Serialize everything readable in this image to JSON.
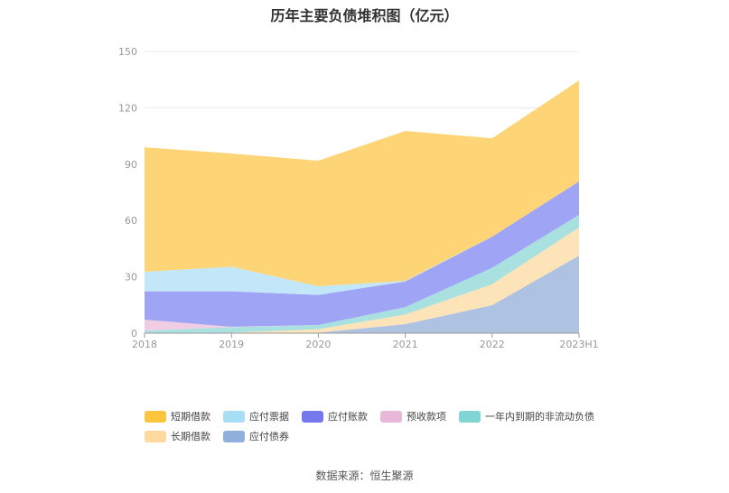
{
  "chart_data": {
    "type": "area",
    "stacked": true,
    "title": "历年主要负债堆积图（亿元）",
    "xlabel": "",
    "ylabel": "",
    "categories": [
      "2018",
      "2019",
      "2020",
      "2021",
      "2022",
      "2023H1"
    ],
    "ylim": [
      0,
      150
    ],
    "yticks": [
      "0",
      "30",
      "60",
      "90",
      "120",
      "150"
    ],
    "grid": true,
    "legend_position": "bottom",
    "series": [
      {
        "name": "应付债券",
        "color": "#8fafdd",
        "fill": "#aec2e2",
        "values": [
          0,
          0,
          0.3,
          4.8,
          14.9,
          41.3
        ]
      },
      {
        "name": "长期借款",
        "color": "#fdd9a0",
        "fill": "#fde3b8",
        "values": [
          0,
          0.3,
          1.8,
          5.1,
          11.2,
          15.0
        ]
      },
      {
        "name": "一年内到期的非流动负债",
        "color": "#7fd4d4",
        "fill": "#a9e1e1",
        "values": [
          1.4,
          2.9,
          2.2,
          4.0,
          8.7,
          6.7
        ]
      },
      {
        "name": "预收款项",
        "color": "#e9b7d7",
        "fill": "#f1cde3",
        "values": [
          5.8,
          0.2,
          0,
          0,
          0,
          0
        ]
      },
      {
        "name": "应付账款",
        "color": "#7678ed",
        "fill": "#a0a4f5",
        "values": [
          15.1,
          18.9,
          16.1,
          13.6,
          16.6,
          17.8
        ]
      },
      {
        "name": "应付票据",
        "color": "#a8ddf6",
        "fill": "#c2e7f9",
        "values": [
          10.4,
          13.1,
          4.6,
          0.4,
          0,
          0
        ]
      },
      {
        "name": "短期借款",
        "color": "#fbc63e",
        "fill": "#fdd577",
        "values": [
          66.3,
          60.3,
          66.8,
          79.8,
          52.4,
          53.8
        ]
      }
    ],
    "legend_order": [
      "短期借款",
      "应付票据",
      "应付账款",
      "预收款项",
      "一年内到期的非流动负债",
      "长期借款",
      "应付债券"
    ]
  },
  "source": "数据来源：恒生聚源"
}
